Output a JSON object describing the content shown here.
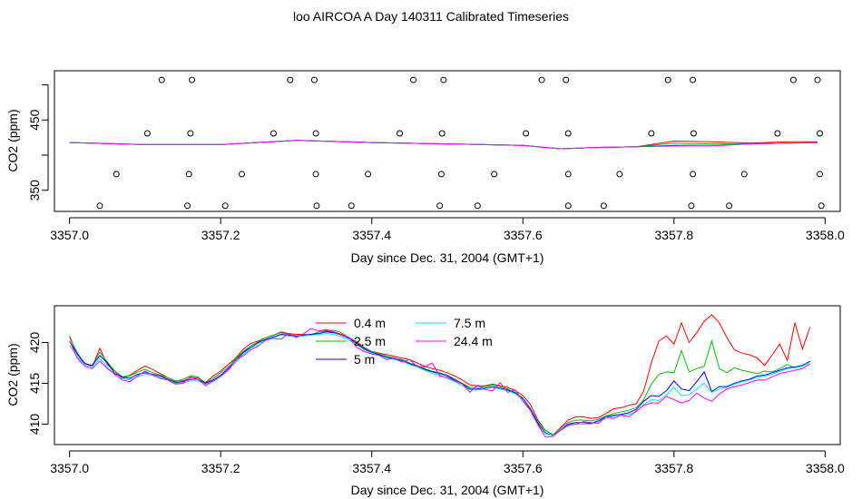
{
  "page": {
    "title": "loo AIRCOA A  Day 140311  Calibrated Timeseries"
  },
  "chart_data": [
    {
      "type": "scatter",
      "title": "",
      "xlabel": "Day since Dec. 31, 2004 (GMT+1)",
      "ylabel": "CO2 (ppm)",
      "xlim": [
        3356.98,
        3358.02
      ],
      "ylim": [
        320,
        520
      ],
      "x_ticks": [
        3357.0,
        3357.2,
        3357.4,
        3357.6,
        3357.8,
        3358.0
      ],
      "x_tick_labels": [
        "3357.0",
        "3357.2",
        "3357.4",
        "3357.6",
        "3357.8",
        "3358.0"
      ],
      "y_ticks": [
        350,
        400,
        450,
        500
      ],
      "y_tick_labels": [
        "350",
        "",
        "450",
        ""
      ],
      "grid": false,
      "series": [
        {
          "color": "#000000",
          "marker": "open-circle",
          "x": [
            3357.122,
            3357.162,
            3357.292,
            3357.324,
            3357.455,
            3357.495,
            3357.625,
            3357.657,
            3357.792,
            3357.825,
            3357.958,
            3357.99
          ],
          "y": [
            507,
            507,
            507,
            507,
            507,
            507,
            507,
            507,
            507,
            507,
            507,
            507
          ]
        },
        {
          "color": "#000000",
          "marker": "open-circle",
          "x": [
            3357.103,
            3357.16,
            3357.27,
            3357.326,
            3357.437,
            3357.493,
            3357.604,
            3357.66,
            3357.77,
            3357.826,
            3357.937,
            3357.993
          ],
          "y": [
            431,
            431,
            431,
            431,
            431,
            431,
            431,
            431,
            431,
            431,
            431,
            431
          ]
        },
        {
          "color": "#000000",
          "marker": "open-circle",
          "x": [
            3357.062,
            3357.158,
            3357.228,
            3357.326,
            3357.395,
            3357.492,
            3357.562,
            3357.66,
            3357.728,
            3357.825,
            3357.893,
            3357.993
          ],
          "y": [
            373,
            373,
            373,
            373,
            373,
            373,
            373,
            373,
            373,
            373,
            373,
            373
          ]
        },
        {
          "color": "#000000",
          "marker": "open-circle",
          "x": [
            3357.04,
            3357.156,
            3357.206,
            3357.327,
            3357.373,
            3357.49,
            3357.54,
            3357.66,
            3357.707,
            3357.823,
            3357.873,
            3357.995
          ],
          "y": [
            328,
            328,
            328,
            328,
            328,
            328,
            328,
            328,
            328,
            328,
            328,
            328
          ]
        },
        {
          "color": "#ff0000",
          "type": "line",
          "x": [
            3357.0,
            3357.1,
            3357.2,
            3357.3,
            3357.4,
            3357.5,
            3357.6,
            3357.65,
            3357.7,
            3357.75,
            3357.8,
            3357.85,
            3357.9,
            3357.95,
            3357.99
          ],
          "y": [
            418,
            415,
            415,
            421,
            418,
            416,
            414,
            409,
            411,
            412,
            420,
            419,
            417,
            419,
            419
          ]
        },
        {
          "color": "#00c000",
          "type": "line",
          "x": [
            3357.0,
            3357.1,
            3357.2,
            3357.3,
            3357.4,
            3357.5,
            3357.6,
            3357.65,
            3357.7,
            3357.75,
            3357.8,
            3357.85,
            3357.9,
            3357.95,
            3357.99
          ],
          "y": [
            418,
            415,
            415,
            421,
            418,
            416,
            414,
            409,
            411,
            412,
            417,
            416,
            416,
            417,
            418
          ]
        },
        {
          "color": "#0000ff",
          "type": "line",
          "x": [
            3357.0,
            3357.1,
            3357.2,
            3357.3,
            3357.4,
            3357.5,
            3357.6,
            3357.65,
            3357.7,
            3357.75,
            3357.8,
            3357.85,
            3357.9,
            3357.95,
            3357.99
          ],
          "y": [
            418,
            415,
            415,
            421,
            418,
            416,
            414,
            409,
            411,
            412,
            414,
            414,
            416,
            417,
            418
          ]
        },
        {
          "color": "#00e5ee",
          "type": "line",
          "x": [
            3357.0,
            3357.1,
            3357.2,
            3357.3,
            3357.4,
            3357.5,
            3357.6,
            3357.65,
            3357.7,
            3357.75,
            3357.8,
            3357.85,
            3357.9,
            3357.95,
            3357.99
          ],
          "y": [
            418,
            415,
            415,
            421,
            418,
            416,
            414,
            409,
            411,
            412,
            413,
            414,
            416,
            417,
            418
          ]
        },
        {
          "color": "#ff00ff",
          "type": "line",
          "x": [
            3357.0,
            3357.1,
            3357.2,
            3357.3,
            3357.4,
            3357.5,
            3357.6,
            3357.65,
            3357.7,
            3357.75,
            3357.8,
            3357.85,
            3357.9,
            3357.95,
            3357.99
          ],
          "y": [
            418,
            415,
            415,
            421,
            418,
            416,
            414,
            409,
            411,
            412,
            413,
            413,
            416,
            417,
            418
          ]
        }
      ]
    },
    {
      "type": "line",
      "title": "",
      "xlabel": "Day since Dec. 31, 2004 (GMT+1)",
      "ylabel": "CO2 (ppm)",
      "xlim": [
        3356.98,
        3358.02
      ],
      "ylim": [
        407.5,
        424.5
      ],
      "x_ticks": [
        3357.0,
        3357.2,
        3357.4,
        3357.6,
        3357.8,
        3358.0
      ],
      "x_tick_labels": [
        "3357.0",
        "3357.2",
        "3357.4",
        "3357.6",
        "3357.8",
        "3358.0"
      ],
      "y_ticks": [
        410,
        415,
        420
      ],
      "y_tick_labels": [
        "410",
        "415",
        "420"
      ],
      "grid": false,
      "legend": {
        "placement": "top-center",
        "columns": 2
      },
      "x": [
        3357.0,
        3357.01,
        3357.02,
        3357.03,
        3357.04,
        3357.05,
        3357.06,
        3357.07,
        3357.08,
        3357.09,
        3357.1,
        3357.11,
        3357.12,
        3357.13,
        3357.14,
        3357.15,
        3357.16,
        3357.17,
        3357.18,
        3357.19,
        3357.2,
        3357.21,
        3357.22,
        3357.23,
        3357.24,
        3357.25,
        3357.26,
        3357.27,
        3357.28,
        3357.29,
        3357.3,
        3357.31,
        3357.32,
        3357.33,
        3357.34,
        3357.35,
        3357.36,
        3357.37,
        3357.38,
        3357.39,
        3357.4,
        3357.41,
        3357.42,
        3357.43,
        3357.44,
        3357.45,
        3357.46,
        3357.47,
        3357.48,
        3357.49,
        3357.5,
        3357.51,
        3357.52,
        3357.53,
        3357.54,
        3357.55,
        3357.56,
        3357.57,
        3357.58,
        3357.59,
        3357.6,
        3357.61,
        3357.62,
        3357.63,
        3357.64,
        3357.65,
        3357.66,
        3357.67,
        3357.68,
        3357.69,
        3357.7,
        3357.71,
        3357.72,
        3357.73,
        3357.74,
        3357.75,
        3357.76,
        3357.77,
        3357.78,
        3357.79,
        3357.8,
        3357.81,
        3357.82,
        3357.83,
        3357.84,
        3357.85,
        3357.86,
        3357.87,
        3357.88,
        3357.89,
        3357.9,
        3357.91,
        3357.92,
        3357.93,
        3357.94,
        3357.95,
        3357.96,
        3357.97,
        3357.98
      ],
      "series": [
        {
          "name": "0.4 m",
          "color": "#ff0000",
          "values": [
            420.8,
            418.6,
            417.5,
            417.0,
            419.3,
            417.3,
            416.5,
            415.6,
            416.0,
            416.6,
            417.1,
            416.7,
            416.2,
            415.7,
            415.3,
            415.3,
            415.7,
            415.7,
            415.1,
            415.9,
            416.5,
            417.3,
            418.1,
            419.2,
            419.9,
            420.2,
            420.6,
            420.9,
            421.3,
            421.1,
            421.0,
            421.0,
            420.9,
            421.3,
            421.4,
            421.3,
            421.0,
            420.6,
            420.1,
            419.4,
            418.9,
            418.7,
            418.5,
            418.3,
            418.1,
            417.9,
            417.5,
            417.1,
            416.8,
            416.6,
            416.3,
            415.9,
            415.4,
            414.8,
            414.7,
            414.7,
            414.9,
            414.7,
            414.5,
            414.1,
            413.5,
            412.4,
            410.5,
            409.2,
            408.7,
            409.6,
            410.5,
            410.9,
            410.9,
            410.7,
            410.8,
            411.3,
            411.9,
            412.0,
            412.3,
            412.5,
            414.1,
            417.5,
            420.2,
            420.8,
            419.8,
            422.4,
            420.0,
            421.2,
            422.6,
            423.4,
            422.4,
            420.6,
            419.1,
            418.7,
            418.5,
            418.1,
            417.2,
            418.5,
            419.8,
            417.8,
            422.4,
            419.2,
            421.9
          ]
        },
        {
          "name": "2.5 m",
          "color": "#00c000",
          "values": [
            420.6,
            418.8,
            417.4,
            417.2,
            418.8,
            417.6,
            416.5,
            415.8,
            415.9,
            416.4,
            416.7,
            416.3,
            416.0,
            415.7,
            415.2,
            415.5,
            415.9,
            415.8,
            415.0,
            415.6,
            416.3,
            417.0,
            418.0,
            418.9,
            419.6,
            420.1,
            420.6,
            420.9,
            421.2,
            421.0,
            420.8,
            420.9,
            421.0,
            421.3,
            421.5,
            421.5,
            421.2,
            420.6,
            420.0,
            419.3,
            418.9,
            418.6,
            418.3,
            418.1,
            417.9,
            417.5,
            417.2,
            416.8,
            416.5,
            416.3,
            416.0,
            415.5,
            415.0,
            414.5,
            414.5,
            414.6,
            414.8,
            414.6,
            414.3,
            413.9,
            413.2,
            411.9,
            410.3,
            409.2,
            408.7,
            409.5,
            410.2,
            410.5,
            410.5,
            410.4,
            410.6,
            411.0,
            411.3,
            411.5,
            411.7,
            412.0,
            413.0,
            414.9,
            416.1,
            416.4,
            416.3,
            419.0,
            416.4,
            416.8,
            417.1,
            420.2,
            416.8,
            416.3,
            416.9,
            416.6,
            416.4,
            416.2,
            416.5,
            416.4,
            416.8,
            417.3,
            416.9,
            417.1,
            417.6
          ]
        },
        {
          "name": "5 m",
          "color": "#0000ff",
          "values": [
            420.2,
            418.6,
            417.4,
            417.2,
            418.4,
            417.5,
            416.2,
            415.8,
            415.6,
            416.1,
            416.3,
            416.1,
            415.9,
            415.5,
            415.1,
            415.2,
            415.5,
            415.5,
            415.0,
            415.4,
            416.0,
            416.8,
            417.8,
            418.8,
            419.4,
            420.0,
            420.4,
            420.7,
            421.0,
            420.9,
            420.8,
            420.9,
            421.0,
            421.1,
            421.3,
            421.2,
            420.9,
            420.5,
            419.9,
            419.2,
            418.8,
            418.5,
            418.2,
            418.0,
            417.8,
            417.4,
            417.1,
            416.7,
            416.4,
            416.2,
            415.9,
            415.4,
            414.9,
            414.3,
            414.3,
            414.4,
            414.6,
            414.4,
            414.2,
            413.8,
            413.1,
            411.8,
            410.1,
            408.9,
            408.6,
            409.3,
            410.0,
            410.2,
            410.2,
            410.1,
            410.4,
            410.9,
            411.1,
            411.2,
            411.4,
            411.8,
            412.8,
            413.5,
            413.4,
            414.1,
            415.3,
            414.3,
            414.1,
            415.2,
            416.4,
            414.0,
            414.6,
            414.6,
            415.0,
            415.3,
            415.5,
            415.9,
            416.0,
            416.3,
            416.6,
            416.9,
            417.0,
            417.2,
            417.7
          ]
        },
        {
          "name": "7.5 m",
          "color": "#00e5ee",
          "values": [
            419.6,
            418.3,
            417.3,
            417.0,
            418.0,
            417.0,
            416.0,
            415.6,
            415.4,
            415.8,
            416.1,
            416.0,
            415.7,
            415.4,
            415.0,
            415.0,
            415.3,
            415.3,
            414.9,
            415.2,
            415.8,
            416.6,
            417.6,
            418.6,
            419.3,
            419.9,
            420.3,
            420.6,
            420.9,
            420.8,
            420.7,
            420.8,
            420.9,
            421.0,
            421.1,
            421.0,
            420.7,
            420.3,
            419.7,
            419.1,
            418.7,
            418.4,
            418.1,
            417.9,
            417.7,
            417.3,
            417.0,
            416.6,
            416.2,
            416.0,
            415.6,
            415.2,
            414.7,
            414.2,
            414.2,
            414.3,
            414.5,
            414.3,
            414.1,
            413.7,
            413.0,
            411.6,
            409.9,
            408.8,
            408.6,
            409.2,
            409.8,
            410.0,
            410.0,
            410.0,
            410.3,
            410.7,
            411.0,
            411.1,
            411.2,
            411.5,
            412.4,
            413.0,
            412.9,
            413.6,
            414.5,
            413.5,
            413.6,
            414.3,
            415.0,
            413.9,
            414.3,
            414.5,
            414.9,
            415.2,
            415.4,
            415.7,
            415.9,
            416.1,
            416.5,
            416.8,
            416.9,
            417.1,
            417.6
          ]
        },
        {
          "name": "24.4 m",
          "color": "#ff00ff",
          "values": [
            420.2,
            418.1,
            417.1,
            416.8,
            417.7,
            416.8,
            416.1,
            415.4,
            415.2,
            415.9,
            416.5,
            416.0,
            415.6,
            415.4,
            414.9,
            415.0,
            415.8,
            415.5,
            414.7,
            415.3,
            415.9,
            416.6,
            417.9,
            418.4,
            419.1,
            419.6,
            420.3,
            420.5,
            420.4,
            421.1,
            420.6,
            421.1,
            421.7,
            421.4,
            421.6,
            421.3,
            420.9,
            420.6,
            419.4,
            418.9,
            418.6,
            418.4,
            417.9,
            418.1,
            417.6,
            417.9,
            417.1,
            417.0,
            417.5,
            415.9,
            415.7,
            415.3,
            414.9,
            413.9,
            414.8,
            414.2,
            414.1,
            415.1,
            413.9,
            414.2,
            412.8,
            411.7,
            409.9,
            408.4,
            408.5,
            409.3,
            409.9,
            410.0,
            410.3,
            410.2,
            410.1,
            410.9,
            410.7,
            411.1,
            410.9,
            411.6,
            412.3,
            412.6,
            412.6,
            413.4,
            413.0,
            412.6,
            412.9,
            413.8,
            413.2,
            412.8,
            413.7,
            414.3,
            414.6,
            414.8,
            415.1,
            415.4,
            415.4,
            415.8,
            416.2,
            416.4,
            416.6,
            416.8,
            417.4
          ]
        }
      ]
    }
  ]
}
